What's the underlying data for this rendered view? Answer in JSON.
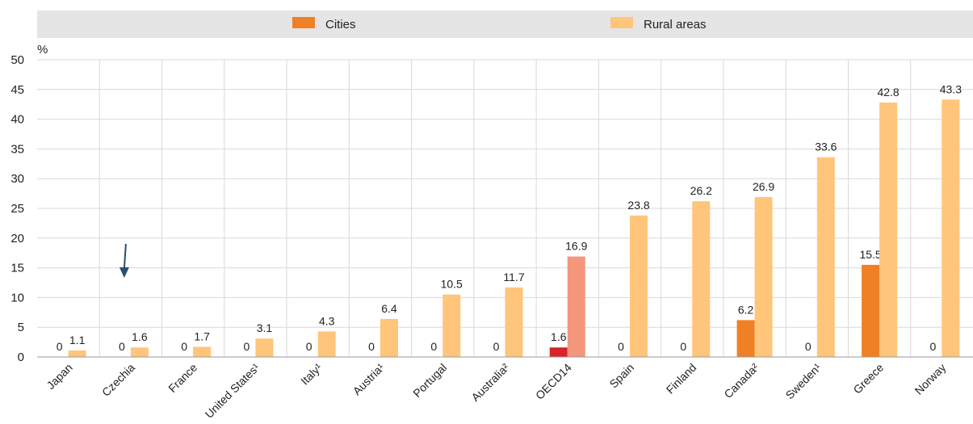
{
  "chart_data": {
    "type": "bar",
    "ylabel": "%",
    "ylim": [
      0,
      50
    ],
    "yticks": [
      0,
      5,
      10,
      15,
      20,
      25,
      30,
      35,
      40,
      45,
      50
    ],
    "grid": true,
    "legend_position": "top",
    "categories": [
      "Japan",
      "Czechia",
      "France",
      "United States¹",
      "Italy¹",
      "Austria¹",
      "Portugal",
      "Australia²",
      "OECD14",
      "Spain",
      "Finland",
      "Canada²",
      "Sweden¹",
      "Greece",
      "Norway"
    ],
    "series": [
      {
        "name": "Cities",
        "values": [
          0,
          0,
          0,
          0,
          0,
          0,
          0,
          0,
          1.6,
          0,
          0,
          6.2,
          0,
          15.5,
          0
        ],
        "labels": [
          "0",
          "0",
          "0",
          "0",
          "0",
          "0",
          "0",
          "0",
          "1.6",
          "0",
          "0",
          "6.2",
          "0",
          "15.5",
          "0"
        ]
      },
      {
        "name": "Rural areas",
        "values": [
          1.1,
          1.6,
          1.7,
          3.1,
          4.3,
          6.4,
          10.5,
          11.7,
          16.9,
          23.8,
          26.2,
          26.9,
          33.6,
          42.8,
          43.3
        ],
        "labels": [
          "1.1",
          "1.6",
          "1.7",
          "3.1",
          "4.3",
          "6.4",
          "10.5",
          "11.7",
          "16.9",
          "23.8",
          "26.2",
          "26.9",
          "33.6",
          "42.8",
          "43.3"
        ]
      }
    ],
    "highlight_category": "OECD14",
    "annotation": "arrow pointing down at Czechia"
  },
  "colors": {
    "cities": "#F08025",
    "rural": "#FFC57A",
    "cities_highlight": "#D8232A",
    "rural_highlight": "#F4967C",
    "legend_band": "#E5E5E5",
    "plot_background": "#FFFFFF",
    "grid": "#D9D9D9",
    "arrow": "#2C4E6E"
  }
}
